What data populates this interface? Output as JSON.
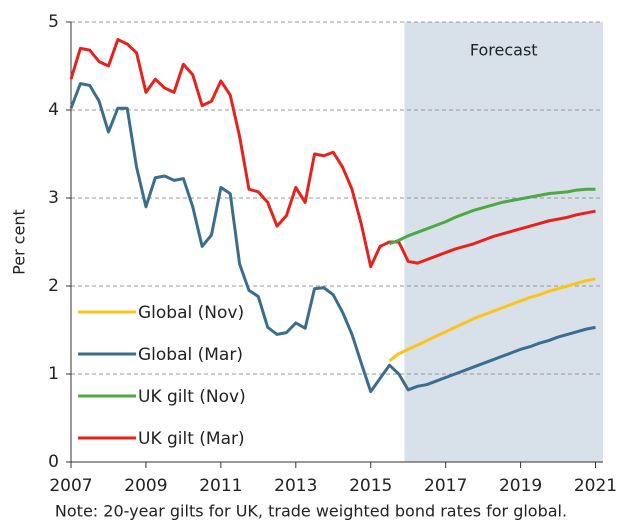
{
  "chart_data": {
    "type": "line",
    "y_label": "Per cent",
    "note": "Note: 20-year gilts for UK, trade weighted bond rates for global.",
    "shaded_region": {
      "label": "Forecast",
      "x": [
        2015.9,
        2021.2
      ],
      "color": "#d8e0e9"
    },
    "xlim": [
      2007,
      2021.2
    ],
    "ylim": [
      0,
      5
    ],
    "xticks": [
      2007,
      2009,
      2011,
      2013,
      2015,
      2017,
      2019,
      2021
    ],
    "yticks": [
      0,
      1,
      2,
      3,
      4,
      5
    ],
    "grid": true,
    "x": [
      2007,
      2007.25,
      2007.5,
      2007.75,
      2008,
      2008.25,
      2008.5,
      2008.75,
      2009,
      2009.25,
      2009.5,
      2009.75,
      2010,
      2010.25,
      2010.5,
      2010.75,
      2011,
      2011.25,
      2011.5,
      2011.75,
      2012,
      2012.25,
      2012.5,
      2012.75,
      2013,
      2013.25,
      2013.5,
      2013.75,
      2014,
      2014.25,
      2014.5,
      2014.75,
      2015,
      2015.25,
      2015.5,
      2015.75,
      2016,
      2016.25,
      2016.5,
      2016.75,
      2017,
      2017.25,
      2017.5,
      2017.75,
      2018,
      2018.25,
      2018.5,
      2018.75,
      2019,
      2019.25,
      2019.5,
      2019.75,
      2020,
      2020.25,
      2020.5,
      2020.75,
      2021
    ],
    "series": [
      {
        "name": "Global (Nov)",
        "color": "#fcc418",
        "values": [
          null,
          null,
          null,
          null,
          null,
          null,
          null,
          null,
          null,
          null,
          null,
          null,
          null,
          null,
          null,
          null,
          null,
          null,
          null,
          null,
          null,
          null,
          null,
          null,
          null,
          null,
          null,
          null,
          null,
          null,
          null,
          null,
          null,
          null,
          1.15,
          1.23,
          1.28,
          1.33,
          1.38,
          1.43,
          1.48,
          1.53,
          1.58,
          1.63,
          1.67,
          1.71,
          1.75,
          1.79,
          1.83,
          1.87,
          1.9,
          1.94,
          1.97,
          2.0,
          2.03,
          2.06,
          2.08
        ]
      },
      {
        "name": "Global (Mar)",
        "color": "#3b6e8e",
        "values": [
          4.02,
          4.3,
          4.28,
          4.1,
          3.75,
          4.02,
          4.02,
          3.35,
          2.9,
          3.23,
          3.25,
          3.2,
          3.22,
          2.9,
          2.45,
          2.58,
          3.12,
          3.05,
          2.25,
          1.95,
          1.88,
          1.53,
          1.45,
          1.47,
          1.58,
          1.52,
          1.97,
          1.98,
          1.9,
          1.7,
          1.45,
          1.12,
          0.8,
          0.95,
          1.1,
          1.0,
          0.82,
          0.86,
          0.88,
          0.92,
          0.96,
          1.0,
          1.04,
          1.08,
          1.12,
          1.16,
          1.2,
          1.24,
          1.28,
          1.31,
          1.35,
          1.38,
          1.42,
          1.45,
          1.48,
          1.51,
          1.53
        ]
      },
      {
        "name": "UK gilt (Nov)",
        "color": "#4ea843",
        "values": [
          null,
          null,
          null,
          null,
          null,
          null,
          null,
          null,
          null,
          null,
          null,
          null,
          null,
          null,
          null,
          null,
          null,
          null,
          null,
          null,
          null,
          null,
          null,
          null,
          null,
          null,
          null,
          null,
          null,
          null,
          null,
          null,
          null,
          null,
          2.48,
          2.52,
          2.57,
          2.61,
          2.65,
          2.69,
          2.73,
          2.78,
          2.82,
          2.86,
          2.89,
          2.92,
          2.95,
          2.97,
          2.99,
          3.01,
          3.03,
          3.05,
          3.06,
          3.07,
          3.09,
          3.1,
          3.1
        ]
      },
      {
        "name": "UK gilt (Mar)",
        "color": "#e6221c",
        "values": [
          4.35,
          4.7,
          4.68,
          4.55,
          4.5,
          4.8,
          4.75,
          4.65,
          4.2,
          4.35,
          4.25,
          4.2,
          4.52,
          4.4,
          4.05,
          4.1,
          4.33,
          4.17,
          3.7,
          3.1,
          3.07,
          2.95,
          2.68,
          2.8,
          3.12,
          2.95,
          3.5,
          3.48,
          3.52,
          3.35,
          3.1,
          2.7,
          2.22,
          2.45,
          2.5,
          2.5,
          2.28,
          2.26,
          2.3,
          2.34,
          2.38,
          2.42,
          2.45,
          2.48,
          2.52,
          2.56,
          2.59,
          2.62,
          2.65,
          2.68,
          2.71,
          2.74,
          2.76,
          2.78,
          2.81,
          2.83,
          2.85
        ]
      }
    ]
  }
}
